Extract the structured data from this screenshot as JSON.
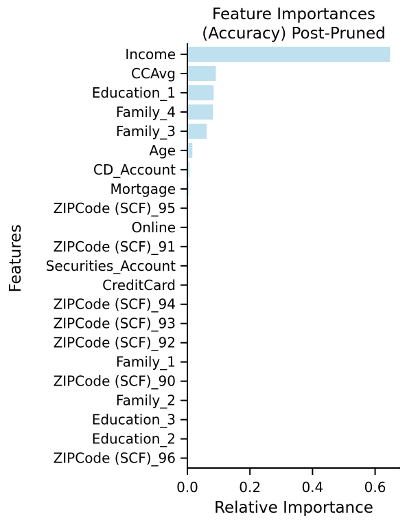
{
  "chart_data": {
    "type": "bar",
    "orientation": "horizontal",
    "title_lines": [
      "Feature Importances",
      "(Accuracy) Post-Pruned"
    ],
    "xlabel": "Relative Importance",
    "ylabel": "Features",
    "xlim": [
      0,
      0.68
    ],
    "xticks": [
      0.0,
      0.2,
      0.4,
      0.6
    ],
    "xtick_labels": [
      "0.0",
      "0.2",
      "0.4",
      "0.6"
    ],
    "grid": false,
    "bar_color": "#bfe0ee",
    "categories": [
      "Income",
      "CCAvg",
      "Education_1",
      "Family_4",
      "Family_3",
      "Age",
      "CD_Account",
      "Mortgage",
      "ZIPCode (SCF)_95",
      "Online",
      "ZIPCode (SCF)_91",
      "Securities_Account",
      "CreditCard",
      "ZIPCode (SCF)_94",
      "ZIPCode (SCF)_93",
      "ZIPCode (SCF)_92",
      "Family_1",
      "ZIPCode (SCF)_90",
      "Family_2",
      "Education_3",
      "Education_2",
      "ZIPCode (SCF)_96"
    ],
    "values": [
      0.648,
      0.091,
      0.084,
      0.082,
      0.062,
      0.016,
      0.007,
      0.005,
      0.0,
      0.0,
      0.0,
      0.0,
      0.0,
      0.0,
      0.0,
      0.0,
      0.0,
      0.0,
      0.0,
      0.0,
      0.0,
      0.0
    ]
  }
}
